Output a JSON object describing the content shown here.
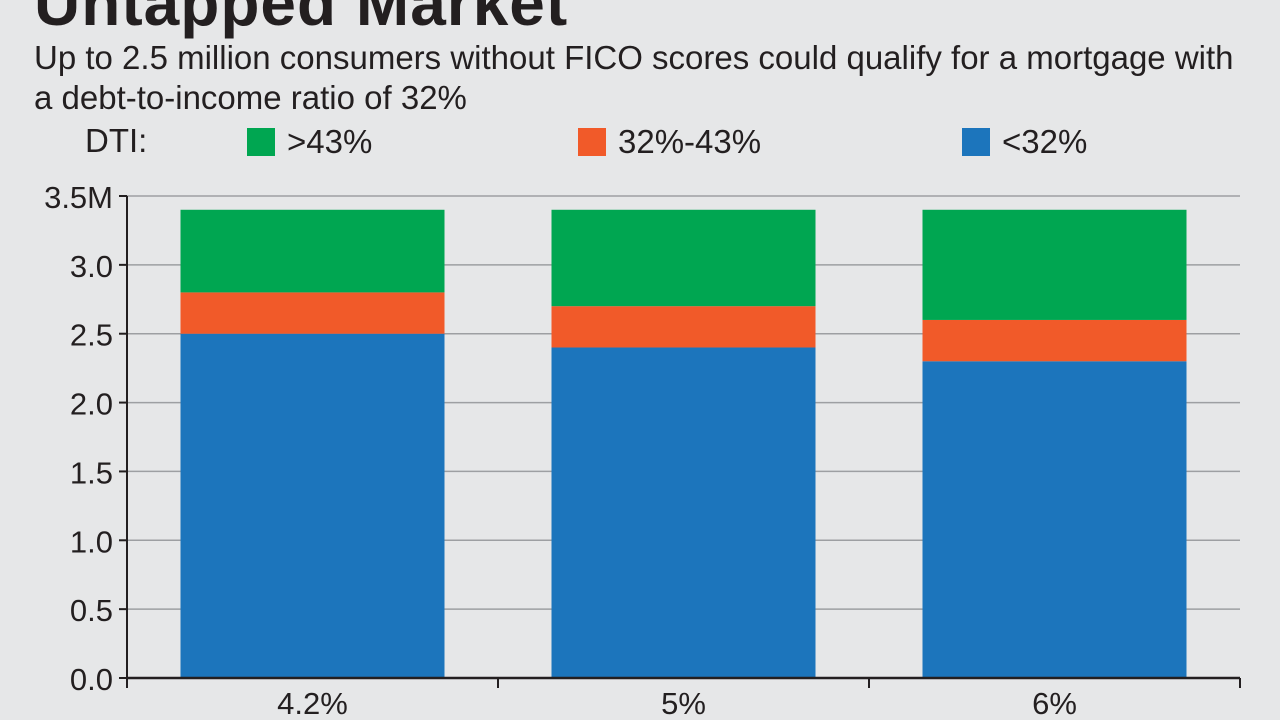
{
  "header": {
    "title": "Untapped Market",
    "subtitle": "Up to 2.5 million consumers without FICO scores could qualify for a mortgage with a debt-to-income ratio of 32%"
  },
  "legend": {
    "prefix": "DTI:",
    "items": [
      {
        "label": ">43%",
        "color": "#00a651"
      },
      {
        "label": "32%-43%",
        "color": "#f15a29"
      },
      {
        "label": "<32%",
        "color": "#1c75bc"
      }
    ]
  },
  "chart_data": {
    "type": "bar",
    "stacked": true,
    "categories": [
      "4.2%",
      "5%",
      "6%"
    ],
    "series": [
      {
        "name": "<32%",
        "color": "#1c75bc",
        "values": [
          2.5,
          2.4,
          2.3
        ]
      },
      {
        "name": "32%-43%",
        "color": "#f15a29",
        "values": [
          0.3,
          0.3,
          0.3
        ]
      },
      {
        "name": ">43%",
        "color": "#00a651",
        "values": [
          0.6,
          0.7,
          0.8
        ]
      }
    ],
    "title": "Untapped Market",
    "xlabel": "",
    "ylabel": "",
    "ylim": [
      0,
      3.5
    ],
    "y_ticks": [
      {
        "value": 0.0,
        "label": "0.0"
      },
      {
        "value": 0.5,
        "label": "0.5"
      },
      {
        "value": 1.0,
        "label": "1.0"
      },
      {
        "value": 1.5,
        "label": "1.5"
      },
      {
        "value": 2.0,
        "label": "2.0"
      },
      {
        "value": 2.5,
        "label": "2.5"
      },
      {
        "value": 3.0,
        "label": "3.0"
      },
      {
        "value": 3.5,
        "label": "3.5M"
      }
    ],
    "grid": true,
    "legend_position": "top"
  }
}
